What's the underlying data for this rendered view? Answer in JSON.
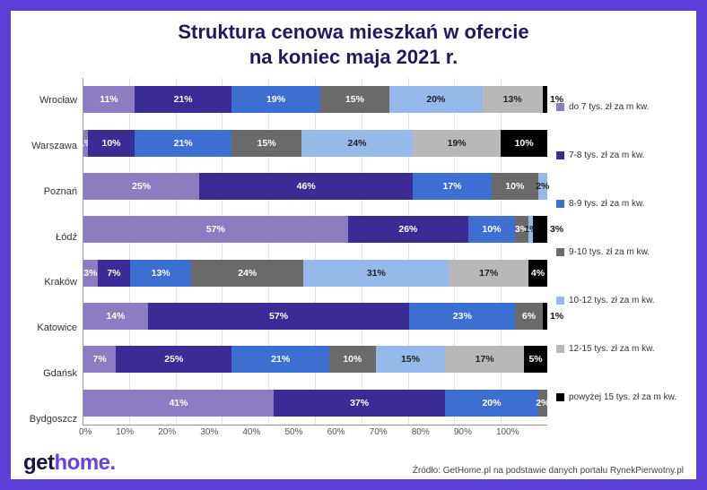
{
  "frame_color": "#5b3fd6",
  "accent_color": "#6a40e0",
  "title_color": "#23185f",
  "title": "Struktura cenowa mieszkań w ofercie\nna koniec maja 2021 r.",
  "title_fontsize": 22,
  "logo_prefix": "get",
  "logo_suffix": "home.",
  "source": "Źródło: GetHome.pl na podstawie danych portalu RynekPierwotny.pl",
  "xaxis": {
    "min": 0,
    "max": 100,
    "step": 10,
    "suffix": "%"
  },
  "bar_total_width_pct": 100,
  "categories": [
    {
      "key": "c0",
      "label": "do 7 tys. zł za m kw.",
      "color": "#8e7cc3"
    },
    {
      "key": "c1",
      "label": "7-8 tys. zł za m kw.",
      "color": "#3b2b94"
    },
    {
      "key": "c2",
      "label": "8-9 tys. zł za m kw.",
      "color": "#3b6fd1"
    },
    {
      "key": "c3",
      "label": "9-10 tys. zł za m kw.",
      "color": "#6a6a6a"
    },
    {
      "key": "c4",
      "label": "10-12 tys. zł za m kw.",
      "color": "#95b9e8"
    },
    {
      "key": "c5",
      "label": "12-15 tys. zł za m kw.",
      "color": "#b8b8b8"
    },
    {
      "key": "c6",
      "label": "powyżej 15 tys. zł za m kw.",
      "color": "#000000"
    }
  ],
  "series": [
    {
      "name": "Wrocław",
      "values": [
        11,
        21,
        19,
        15,
        20,
        13,
        1
      ],
      "outside_last": true
    },
    {
      "name": "Warszawa",
      "values": [
        1,
        10,
        21,
        15,
        24,
        19,
        10
      ]
    },
    {
      "name": "Poznań",
      "values": [
        25,
        46,
        17,
        10,
        2,
        0,
        0
      ]
    },
    {
      "name": "Łódź",
      "values": [
        57,
        26,
        10,
        3,
        1,
        0,
        3
      ],
      "outside_last": true
    },
    {
      "name": "Kraków",
      "values": [
        3,
        7,
        13,
        24,
        31,
        17,
        4
      ]
    },
    {
      "name": "Katowice",
      "values": [
        14,
        57,
        23,
        6,
        0,
        0,
        1
      ],
      "outside_last": true
    },
    {
      "name": "Gdańsk",
      "values": [
        7,
        25,
        21,
        10,
        15,
        17,
        5
      ]
    },
    {
      "name": "Bydgoszcz",
      "values": [
        41,
        37,
        20,
        2,
        0,
        0,
        0
      ]
    }
  ],
  "label_threshold_pct": 1,
  "dark_text_categories": [
    "c4",
    "c5"
  ],
  "background_color": "#ffffff",
  "grid_color": "#e2e2e2"
}
